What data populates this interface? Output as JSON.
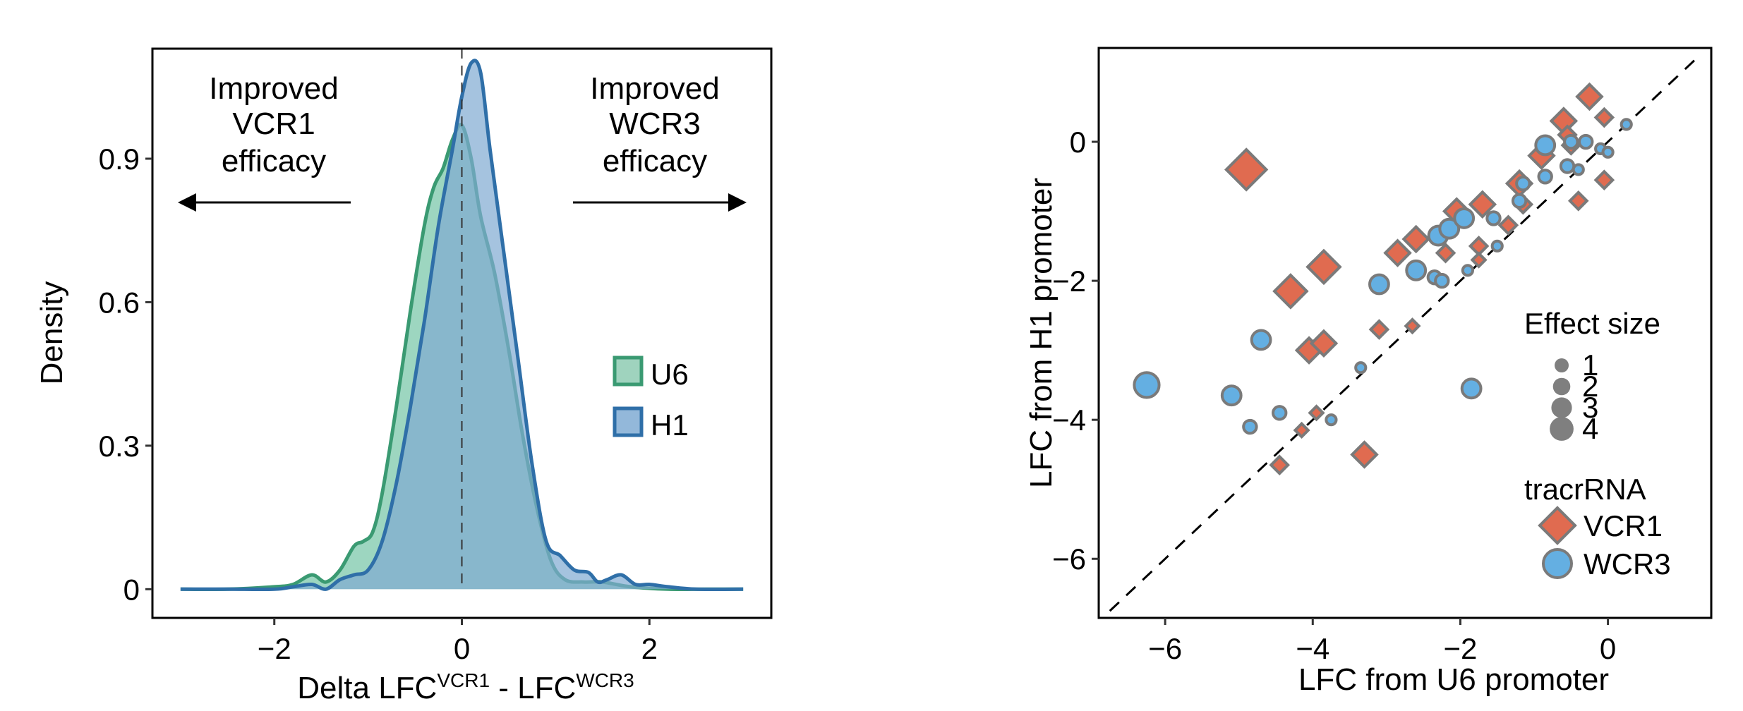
{
  "chart_data": [
    {
      "type": "area",
      "title": "",
      "xlabel": "Delta LFC",
      "xlabel_parts": {
        "main1": "Delta LFC",
        "sup1": "VCR1",
        "mid": " - LFC",
        "sup2": "WCR3"
      },
      "ylabel": "Density",
      "xlim": [
        -3.3,
        3.3
      ],
      "ylim": [
        -0.06,
        1.13
      ],
      "xticks": [
        -2,
        0,
        2
      ],
      "xtick_labels": [
        "−2",
        "0",
        "2"
      ],
      "yticks": [
        0,
        0.3,
        0.6,
        0.9
      ],
      "ytick_labels": [
        "0",
        "0.3",
        "0.6",
        "0.9"
      ],
      "grid": false,
      "reference_line": {
        "x": 0,
        "style": "dashed"
      },
      "annotations": [
        {
          "lines": [
            "Improved",
            "VCR1",
            "efficacy"
          ],
          "arrow": "left"
        },
        {
          "lines": [
            "Improved",
            "WCR3",
            "efficacy"
          ],
          "arrow": "right"
        }
      ],
      "legend": {
        "placement": "right-center",
        "entries": [
          "U6",
          "H1"
        ]
      },
      "series": [
        {
          "name": "U6",
          "line_color": "#3a9a72",
          "fill_color": "#7cc8ab",
          "x": [
            -3.0,
            -2.5,
            -2.0,
            -1.8,
            -1.6,
            -1.45,
            -1.3,
            -1.15,
            -1.05,
            -0.95,
            -0.85,
            -0.7,
            -0.55,
            -0.4,
            -0.3,
            -0.2,
            -0.1,
            0.0,
            0.1,
            0.2,
            0.35,
            0.5,
            0.65,
            0.8,
            0.95,
            1.1,
            1.3,
            1.5,
            1.8,
            2.2,
            2.6,
            3.0
          ],
          "y": [
            0.0,
            0.0,
            0.005,
            0.01,
            0.03,
            0.015,
            0.04,
            0.09,
            0.1,
            0.12,
            0.2,
            0.38,
            0.58,
            0.76,
            0.84,
            0.88,
            0.94,
            0.97,
            0.9,
            0.78,
            0.66,
            0.5,
            0.32,
            0.17,
            0.06,
            0.02,
            0.015,
            0.015,
            0.005,
            0.0,
            0.0,
            0.0
          ]
        },
        {
          "name": "H1",
          "line_color": "#2f6fa8",
          "fill_color": "#7fa9d1",
          "x": [
            -3.0,
            -2.5,
            -2.0,
            -1.8,
            -1.6,
            -1.45,
            -1.3,
            -1.15,
            -1.0,
            -0.85,
            -0.7,
            -0.55,
            -0.4,
            -0.25,
            -0.1,
            0.0,
            0.1,
            0.2,
            0.3,
            0.45,
            0.6,
            0.75,
            0.9,
            1.05,
            1.2,
            1.35,
            1.45,
            1.55,
            1.7,
            1.85,
            2.0,
            2.2,
            2.5,
            3.0
          ],
          "y": [
            0.0,
            0.0,
            0.0,
            0.005,
            0.01,
            0.0,
            0.02,
            0.03,
            0.04,
            0.1,
            0.22,
            0.38,
            0.56,
            0.76,
            0.92,
            1.03,
            1.1,
            1.08,
            0.92,
            0.7,
            0.48,
            0.26,
            0.1,
            0.07,
            0.04,
            0.035,
            0.015,
            0.02,
            0.03,
            0.01,
            0.01,
            0.005,
            0.0,
            0.0
          ]
        }
      ]
    },
    {
      "type": "scatter",
      "title": "",
      "xlabel": "LFC from U6 promoter",
      "ylabel": "LFC from H1 promoter",
      "xlim": [
        -6.9,
        1.4
      ],
      "ylim": [
        -6.85,
        1.35
      ],
      "xticks": [
        -6,
        -4,
        -2,
        0
      ],
      "xtick_labels": [
        "−6",
        "−4",
        "−2",
        "0"
      ],
      "yticks": [
        0,
        -2,
        -4,
        -6
      ],
      "ytick_labels": [
        "0",
        "−2",
        "−4",
        "−6"
      ],
      "grid": false,
      "reference_line": {
        "slope": 1,
        "intercept": 0,
        "style": "dashed"
      },
      "legend": {
        "placement": "right-bottom",
        "size_title": "Effect size",
        "size_entries": [
          "1",
          "2",
          "3",
          "4"
        ],
        "shape_title": "tracrRNA",
        "shape_entries": [
          {
            "label": "VCR1",
            "shape": "diamond",
            "color": "#e06b50"
          },
          {
            "label": "WCR3",
            "shape": "circle",
            "color": "#64afe2"
          }
        ]
      },
      "point_stroke": "#7a7a7a",
      "series": [
        {
          "name": "VCR1",
          "shape": "diamond",
          "color": "#e06b50",
          "points": [
            {
              "x": -4.9,
              "y": -0.4,
              "size": 4
            },
            {
              "x": -4.3,
              "y": -2.15,
              "size": 3
            },
            {
              "x": -3.85,
              "y": -1.8,
              "size": 3
            },
            {
              "x": -4.05,
              "y": -3.0,
              "size": 2
            },
            {
              "x": -3.85,
              "y": -2.9,
              "size": 2
            },
            {
              "x": -3.3,
              "y": -4.5,
              "size": 2
            },
            {
              "x": -4.45,
              "y": -4.65,
              "size": 1
            },
            {
              "x": -3.1,
              "y": -2.7,
              "size": 1
            },
            {
              "x": -2.85,
              "y": -1.6,
              "size": 2
            },
            {
              "x": -2.6,
              "y": -1.4,
              "size": 2
            },
            {
              "x": -2.05,
              "y": -1.0,
              "size": 2
            },
            {
              "x": -1.7,
              "y": -0.9,
              "size": 2
            },
            {
              "x": -2.2,
              "y": -1.6,
              "size": 1
            },
            {
              "x": -1.75,
              "y": -1.5,
              "size": 1
            },
            {
              "x": -1.35,
              "y": -1.2,
              "size": 1
            },
            {
              "x": -1.2,
              "y": -0.6,
              "size": 2
            },
            {
              "x": -1.15,
              "y": -0.9,
              "size": 1
            },
            {
              "x": -0.9,
              "y": -0.2,
              "size": 2
            },
            {
              "x": -0.6,
              "y": 0.3,
              "size": 2
            },
            {
              "x": -0.55,
              "y": 0.1,
              "size": 1
            },
            {
              "x": -0.5,
              "y": -0.05,
              "size": 1
            },
            {
              "x": -0.25,
              "y": 0.65,
              "size": 2
            },
            {
              "x": -0.05,
              "y": 0.35,
              "size": 1
            },
            {
              "x": -0.05,
              "y": -0.55,
              "size": 1
            },
            {
              "x": -0.4,
              "y": -0.85,
              "size": 1
            },
            {
              "x": -4.15,
              "y": -4.15,
              "size": 0.5
            },
            {
              "x": -3.95,
              "y": -3.9,
              "size": 0.5
            },
            {
              "x": -2.65,
              "y": -2.65,
              "size": 0.5
            },
            {
              "x": -1.75,
              "y": -1.7,
              "size": 0.5
            }
          ]
        },
        {
          "name": "WCR3",
          "shape": "circle",
          "color": "#64afe2",
          "points": [
            {
              "x": -6.25,
              "y": -3.5,
              "size": 3
            },
            {
              "x": -5.1,
              "y": -3.65,
              "size": 2
            },
            {
              "x": -4.7,
              "y": -2.85,
              "size": 2
            },
            {
              "x": -4.85,
              "y": -4.1,
              "size": 1
            },
            {
              "x": -4.45,
              "y": -3.9,
              "size": 1
            },
            {
              "x": -3.75,
              "y": -4.0,
              "size": 0.5
            },
            {
              "x": -3.35,
              "y": -3.25,
              "size": 0.5
            },
            {
              "x": -3.1,
              "y": -2.05,
              "size": 2
            },
            {
              "x": -1.85,
              "y": -3.55,
              "size": 2
            },
            {
              "x": -2.6,
              "y": -1.85,
              "size": 2
            },
            {
              "x": -2.3,
              "y": -1.35,
              "size": 2
            },
            {
              "x": -2.15,
              "y": -1.25,
              "size": 2
            },
            {
              "x": -1.95,
              "y": -1.1,
              "size": 2
            },
            {
              "x": -2.35,
              "y": -1.95,
              "size": 1
            },
            {
              "x": -2.25,
              "y": -2.0,
              "size": 1
            },
            {
              "x": -1.9,
              "y": -1.85,
              "size": 0.5
            },
            {
              "x": -1.55,
              "y": -1.1,
              "size": 1
            },
            {
              "x": -1.5,
              "y": -1.5,
              "size": 0.5
            },
            {
              "x": -1.15,
              "y": -0.6,
              "size": 1
            },
            {
              "x": -1.2,
              "y": -0.85,
              "size": 1
            },
            {
              "x": -0.85,
              "y": -0.05,
              "size": 2
            },
            {
              "x": -0.85,
              "y": -0.5,
              "size": 1
            },
            {
              "x": -0.55,
              "y": -0.35,
              "size": 1
            },
            {
              "x": -0.5,
              "y": 0.0,
              "size": 1
            },
            {
              "x": -0.3,
              "y": 0.0,
              "size": 1
            },
            {
              "x": -0.1,
              "y": -0.1,
              "size": 0.5
            },
            {
              "x": 0.0,
              "y": -0.15,
              "size": 0.5
            },
            {
              "x": 0.25,
              "y": 0.25,
              "size": 0.5
            },
            {
              "x": -0.4,
              "y": -0.4,
              "size": 0.5
            }
          ]
        }
      ]
    }
  ]
}
